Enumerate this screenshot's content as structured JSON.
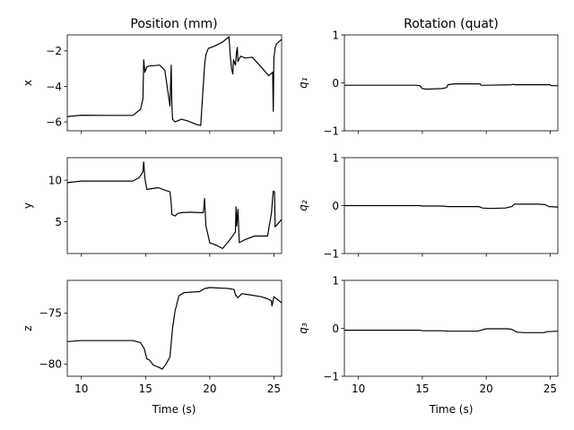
{
  "chart_data": {
    "type": "line",
    "column_titles": [
      "Position (mm)",
      "Rotation (quat)"
    ],
    "xlabel": "Time (s)",
    "xlim": [
      8.9,
      25.6
    ],
    "xticks": [
      10,
      15,
      20,
      25
    ],
    "color": "#000000",
    "panels": [
      {
        "id": "x",
        "column": 0,
        "row": 0,
        "ylabel": "x",
        "ylim": [
          -6.5,
          -1.1
        ],
        "yticks": [
          -6,
          -4,
          -2
        ],
        "x": [
          8.9,
          10,
          12,
          14,
          14.6,
          14.8,
          14.85,
          14.95,
          15.1,
          15.3,
          16.1,
          16.5,
          16.9,
          17.0,
          17.05,
          17.1,
          17.3,
          17.8,
          18.3,
          19.0,
          19.3,
          19.6,
          19.7,
          19.9,
          20.3,
          21.0,
          21.5,
          21.6,
          21.7,
          21.8,
          21.85,
          22.0,
          22.1,
          22.15,
          22.2,
          22.4,
          22.8,
          23.3,
          24.0,
          24.6,
          24.9,
          24.95,
          25.0,
          25.1,
          25.2,
          25.6
        ],
        "y": [
          -5.7,
          -5.62,
          -5.63,
          -5.63,
          -5.3,
          -4.7,
          -2.5,
          -3.2,
          -2.9,
          -2.85,
          -2.8,
          -3.1,
          -5.1,
          -2.8,
          -5.0,
          -5.85,
          -6.0,
          -5.85,
          -5.95,
          -6.15,
          -6.2,
          -2.8,
          -2.2,
          -1.85,
          -1.75,
          -1.5,
          -1.2,
          -2.3,
          -3.0,
          -3.3,
          -2.5,
          -2.8,
          -2.0,
          -1.8,
          -2.6,
          -2.3,
          -2.4,
          -2.35,
          -2.9,
          -3.4,
          -3.2,
          -5.4,
          -2.4,
          -1.8,
          -1.6,
          -1.35
        ]
      },
      {
        "id": "y",
        "column": 0,
        "row": 1,
        "ylabel": "y",
        "ylim": [
          1.2,
          12.7
        ],
        "yticks": [
          5,
          10
        ],
        "x": [
          8.9,
          10,
          12,
          14,
          14.5,
          14.8,
          14.85,
          14.95,
          15.1,
          16.0,
          16.5,
          16.9,
          17.0,
          17.05,
          17.3,
          17.5,
          17.8,
          18.5,
          19.3,
          19.5,
          19.6,
          19.7,
          20.0,
          20.5,
          21.0,
          21.5,
          22.0,
          22.05,
          22.1,
          22.2,
          22.3,
          22.8,
          23.5,
          24.0,
          24.5,
          24.8,
          24.95,
          25.05,
          25.1,
          25.6
        ],
        "y": [
          9.7,
          9.9,
          9.9,
          9.9,
          10.3,
          11.0,
          12.2,
          10.2,
          8.9,
          9.1,
          8.8,
          8.6,
          7.3,
          5.9,
          5.7,
          6.0,
          6.1,
          6.15,
          6.1,
          6.1,
          7.8,
          4.5,
          2.5,
          2.2,
          1.8,
          2.7,
          3.8,
          6.8,
          4.5,
          6.5,
          2.5,
          2.9,
          3.3,
          3.3,
          3.3,
          6.0,
          8.7,
          8.6,
          4.4,
          5.3
        ]
      },
      {
        "id": "z",
        "column": 0,
        "row": 2,
        "ylabel": "z",
        "ylim": [
          -81.2,
          -71.8
        ],
        "yticks": [
          -80,
          -75
        ],
        "x": [
          8.9,
          10,
          12,
          14,
          14.6,
          14.9,
          15.1,
          15.3,
          15.6,
          16.0,
          16.3,
          16.6,
          16.9,
          17.1,
          17.3,
          17.6,
          18.0,
          19.2,
          19.6,
          20.0,
          21.5,
          21.9,
          22.0,
          22.2,
          22.5,
          23.0,
          24.0,
          24.5,
          24.8,
          24.85,
          25.0,
          25.6
        ],
        "y": [
          -77.8,
          -77.7,
          -77.7,
          -77.7,
          -77.9,
          -78.5,
          -79.5,
          -79.6,
          -80.1,
          -80.3,
          -80.5,
          -80.0,
          -79.3,
          -76.5,
          -74.8,
          -73.3,
          -73.0,
          -72.9,
          -72.6,
          -72.5,
          -72.6,
          -72.7,
          -73.2,
          -73.5,
          -73.1,
          -73.2,
          -73.4,
          -73.6,
          -73.8,
          -74.3,
          -73.4,
          -74.0
        ]
      },
      {
        "id": "q1",
        "column": 1,
        "row": 0,
        "ylabel": "q₁",
        "ylim": [
          -1,
          1
        ],
        "yticks": [
          -1,
          0,
          1
        ],
        "x": [
          8.9,
          12,
          14.5,
          14.8,
          15.0,
          15.3,
          16.5,
          16.9,
          17.0,
          17.5,
          19.5,
          19.6,
          20.0,
          22.0,
          22.1,
          22.3,
          23.0,
          25.0,
          25.1,
          25.6
        ],
        "y": [
          -0.05,
          -0.05,
          -0.05,
          -0.06,
          -0.12,
          -0.13,
          -0.12,
          -0.1,
          -0.04,
          -0.02,
          -0.02,
          -0.05,
          -0.05,
          -0.04,
          -0.03,
          -0.04,
          -0.04,
          -0.04,
          -0.06,
          -0.06
        ]
      },
      {
        "id": "q2",
        "column": 1,
        "row": 1,
        "ylabel": "q₂",
        "ylim": [
          -1,
          1
        ],
        "yticks": [
          -1,
          0,
          1
        ],
        "x": [
          8.9,
          12,
          14.8,
          15.0,
          16.5,
          17.0,
          19.4,
          19.7,
          20.3,
          21.5,
          22.0,
          22.2,
          24.0,
          24.6,
          24.9,
          25.6
        ],
        "y": [
          0.0,
          0.0,
          0.0,
          -0.01,
          -0.01,
          -0.02,
          -0.02,
          -0.05,
          -0.06,
          -0.05,
          -0.02,
          0.03,
          0.03,
          0.02,
          -0.02,
          -0.03
        ]
      },
      {
        "id": "q3",
        "column": 1,
        "row": 2,
        "ylabel": "q₃",
        "ylim": [
          -1,
          1
        ],
        "yticks": [
          -1,
          0,
          1
        ],
        "x": [
          8.9,
          12,
          14.8,
          15.0,
          16.5,
          17.0,
          19.3,
          19.6,
          20.0,
          21.6,
          22.0,
          22.4,
          23.0,
          24.5,
          24.8,
          25.6
        ],
        "y": [
          -0.04,
          -0.04,
          -0.04,
          -0.05,
          -0.05,
          -0.06,
          -0.06,
          -0.04,
          -0.01,
          -0.01,
          -0.02,
          -0.08,
          -0.09,
          -0.09,
          -0.07,
          -0.06
        ]
      }
    ]
  }
}
